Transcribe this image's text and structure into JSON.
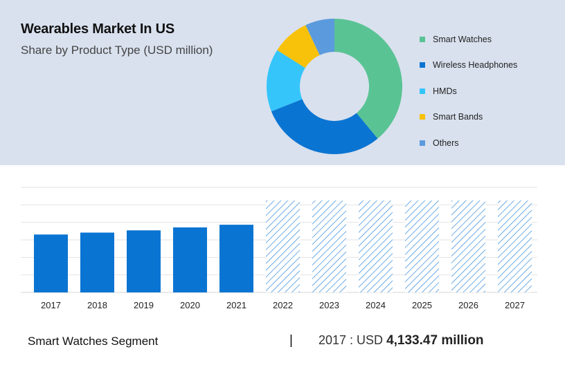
{
  "header": {
    "title": "Wearables Market In US",
    "subtitle": "Share by Product Type (USD million)"
  },
  "chart_data": [
    {
      "type": "pie",
      "title": "Wearables Market In US",
      "subtitle": "Share by Product Type (USD million)",
      "legend_position": "right",
      "categories": [
        "Smart Watches",
        "Wireless Headphones",
        "HMDs",
        "Smart Bands",
        "Others"
      ],
      "values": [
        39,
        30,
        15,
        9,
        7
      ],
      "colors": [
        "#5ac394",
        "#0a74d2",
        "#35c5fb",
        "#f8c10a",
        "#5b9bdd"
      ]
    },
    {
      "type": "bar",
      "categories": [
        "2017",
        "2018",
        "2019",
        "2020",
        "2021",
        "2022",
        "2023",
        "2024",
        "2025",
        "2026",
        "2027"
      ],
      "values": [
        4133.47,
        4270,
        4430,
        4640,
        4830,
        6560,
        6560,
        6560,
        6560,
        6560,
        6560
      ],
      "projected": [
        false,
        false,
        false,
        false,
        false,
        true,
        true,
        true,
        true,
        true,
        true
      ],
      "ylim": [
        0,
        7500
      ],
      "gridlines": [
        1250,
        2500,
        3750,
        5000,
        6250,
        7500
      ],
      "grid": true,
      "colors": {
        "actual": "#0a74d2",
        "projected": "#2f87d8"
      }
    }
  ],
  "footer": {
    "segment_label": "Smart Watches Segment",
    "separator": "|",
    "value_prefix": "2017 : USD",
    "value_bold": "4,133.47 million"
  }
}
